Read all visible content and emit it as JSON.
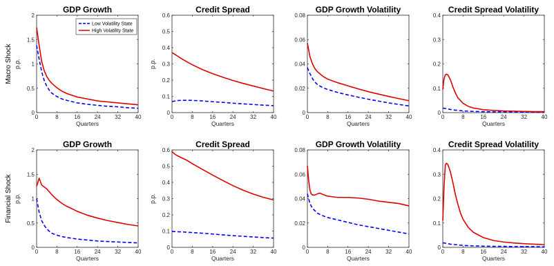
{
  "row_labels": [
    "Macro Shock",
    "Financial Shock"
  ],
  "legend": {
    "entries": [
      "Low Volatility State",
      "High Volatility State"
    ],
    "placement": "top-right of first panel"
  },
  "colors": {
    "low": "#0000ff",
    "high": "#dd0000"
  },
  "chart_data": [
    {
      "type": "line",
      "title": "GDP Growth",
      "xlabel": "Quarters",
      "ylabel": "p.p.",
      "xlim": [
        0,
        40
      ],
      "ylim": [
        0,
        2
      ],
      "xticks": [
        "0",
        "8",
        "16",
        "24",
        "32",
        "40"
      ],
      "yticks": [
        "0",
        "0.5",
        "1",
        "1.5",
        "2"
      ],
      "x": [
        0,
        1,
        2,
        3,
        4,
        5,
        6,
        8,
        10,
        12,
        16,
        20,
        24,
        28,
        32,
        36,
        40
      ],
      "series": [
        {
          "name": "Low Volatility State",
          "style": "dashed",
          "values": [
            1.38,
            1.1,
            0.84,
            0.66,
            0.54,
            0.46,
            0.4,
            0.33,
            0.28,
            0.25,
            0.2,
            0.17,
            0.15,
            0.13,
            0.12,
            0.1,
            0.09
          ]
        },
        {
          "name": "High Volatility State",
          "style": "solid",
          "values": [
            1.75,
            1.38,
            1.05,
            0.86,
            0.74,
            0.66,
            0.6,
            0.51,
            0.44,
            0.39,
            0.32,
            0.28,
            0.24,
            0.22,
            0.2,
            0.18,
            0.16
          ]
        }
      ]
    },
    {
      "type": "line",
      "title": "Credit Spread",
      "xlabel": "Quarters",
      "ylabel": "p.p.",
      "xlim": [
        0,
        40
      ],
      "ylim": [
        0,
        0.6
      ],
      "xticks": [
        "0",
        "8",
        "16",
        "24",
        "32",
        "40"
      ],
      "yticks": [
        "0",
        "0.1",
        "0.2",
        "0.3",
        "0.4",
        "0.5",
        "0.6"
      ],
      "x": [
        0,
        2,
        4,
        6,
        8,
        12,
        16,
        20,
        24,
        28,
        32,
        36,
        40
      ],
      "series": [
        {
          "name": "Low Volatility State",
          "style": "dashed",
          "values": [
            0.068,
            0.074,
            0.076,
            0.076,
            0.075,
            0.072,
            0.067,
            0.063,
            0.058,
            0.054,
            0.05,
            0.046,
            0.043
          ]
        },
        {
          "name": "High Volatility State",
          "style": "solid",
          "values": [
            0.37,
            0.35,
            0.33,
            0.312,
            0.295,
            0.265,
            0.24,
            0.218,
            0.198,
            0.18,
            0.164,
            0.148,
            0.133
          ]
        }
      ]
    },
    {
      "type": "line",
      "title": "GDP Growth Volatility",
      "xlabel": "Quarters",
      "ylabel": "",
      "xlim": [
        0,
        40
      ],
      "ylim": [
        0,
        0.08
      ],
      "xticks": [
        "0",
        "8",
        "16",
        "24",
        "32",
        "40"
      ],
      "yticks": [
        "0",
        "0.02",
        "0.04",
        "0.06",
        "0.08"
      ],
      "x": [
        0,
        1,
        2,
        3,
        4,
        6,
        8,
        12,
        16,
        20,
        24,
        28,
        32,
        36,
        40
      ],
      "series": [
        {
          "name": "Low Volatility State",
          "style": "dashed",
          "values": [
            0.037,
            0.032,
            0.028,
            0.025,
            0.023,
            0.0205,
            0.019,
            0.0165,
            0.0145,
            0.0127,
            0.011,
            0.0095,
            0.008,
            0.0067,
            0.0055
          ]
        },
        {
          "name": "High Volatility State",
          "style": "solid",
          "values": [
            0.057,
            0.046,
            0.04,
            0.036,
            0.0335,
            0.03,
            0.0275,
            0.0245,
            0.022,
            0.0195,
            0.0172,
            0.0152,
            0.0133,
            0.0115,
            0.0098
          ]
        }
      ]
    },
    {
      "type": "line",
      "title": "Credit Spread Volatility",
      "xlabel": "Quarters",
      "ylabel": "",
      "xlim": [
        0,
        40
      ],
      "ylim": [
        0,
        0.4
      ],
      "xticks": [
        "0",
        "8",
        "16",
        "24",
        "32",
        "40"
      ],
      "yticks": [
        "0",
        "0.1",
        "0.2",
        "0.3",
        "0.4"
      ],
      "x": [
        0,
        0.5,
        1,
        1.5,
        2,
        3,
        4,
        5,
        6,
        8,
        10,
        12,
        16,
        20,
        24,
        28,
        32,
        36,
        40
      ],
      "series": [
        {
          "name": "Low Volatility State",
          "style": "dashed",
          "values": [
            0.018,
            0.018,
            0.017,
            0.016,
            0.015,
            0.013,
            0.011,
            0.01,
            0.009,
            0.007,
            0.006,
            0.005,
            0.004,
            0.003,
            0.003,
            0.002,
            0.002,
            0.002,
            0.002
          ]
        },
        {
          "name": "High Volatility State",
          "style": "solid",
          "values": [
            0.095,
            0.14,
            0.155,
            0.158,
            0.155,
            0.135,
            0.105,
            0.08,
            0.06,
            0.038,
            0.026,
            0.019,
            0.012,
            0.009,
            0.007,
            0.006,
            0.005,
            0.004,
            0.004
          ]
        }
      ]
    },
    {
      "type": "line",
      "title": "GDP Growth",
      "xlabel": "Quarters",
      "ylabel": "p.p.",
      "xlim": [
        0,
        40
      ],
      "ylim": [
        0,
        2
      ],
      "xticks": [
        "0",
        "8",
        "16",
        "24",
        "32",
        "40"
      ],
      "yticks": [
        "0",
        "0.5",
        "1",
        "1.5",
        "2"
      ],
      "x": [
        0,
        1,
        2,
        3,
        4,
        5,
        6,
        8,
        10,
        12,
        16,
        20,
        24,
        28,
        32,
        36,
        40
      ],
      "series": [
        {
          "name": "Low Volatility State",
          "style": "dashed",
          "values": [
            1.0,
            0.72,
            0.55,
            0.45,
            0.38,
            0.33,
            0.29,
            0.25,
            0.22,
            0.2,
            0.17,
            0.15,
            0.13,
            0.12,
            0.11,
            0.1,
            0.09
          ]
        },
        {
          "name": "High Volatility State",
          "style": "solid",
          "values": [
            1.25,
            1.42,
            1.28,
            1.24,
            1.2,
            1.14,
            1.08,
            0.98,
            0.9,
            0.84,
            0.74,
            0.66,
            0.6,
            0.55,
            0.51,
            0.47,
            0.44
          ]
        }
      ]
    },
    {
      "type": "line",
      "title": "Credit Spread",
      "xlabel": "Quarters",
      "ylabel": "p.p.",
      "xlim": [
        0,
        40
      ],
      "ylim": [
        0,
        0.6
      ],
      "xticks": [
        "0",
        "8",
        "16",
        "24",
        "32",
        "40"
      ],
      "yticks": [
        "0",
        "0.1",
        "0.2",
        "0.3",
        "0.4",
        "0.5",
        "0.6"
      ],
      "x": [
        0,
        1,
        2,
        4,
        6,
        8,
        12,
        16,
        20,
        24,
        28,
        32,
        36,
        40
      ],
      "series": [
        {
          "name": "Low Volatility State",
          "style": "dashed",
          "values": [
            0.098,
            0.097,
            0.096,
            0.095,
            0.093,
            0.091,
            0.087,
            0.082,
            0.077,
            0.072,
            0.068,
            0.064,
            0.06,
            0.057
          ]
        },
        {
          "name": "High Volatility State",
          "style": "solid",
          "values": [
            0.59,
            0.575,
            0.565,
            0.55,
            0.535,
            0.515,
            0.48,
            0.445,
            0.412,
            0.38,
            0.352,
            0.328,
            0.308,
            0.292
          ]
        }
      ]
    },
    {
      "type": "line",
      "title": "GDP Growth Volatility",
      "xlabel": "Quarters",
      "ylabel": "",
      "xlim": [
        0,
        40
      ],
      "ylim": [
        0,
        0.08
      ],
      "xticks": [
        "0",
        "8",
        "16",
        "24",
        "32",
        "40"
      ],
      "yticks": [
        "0",
        "0.02",
        "0.04",
        "0.06",
        "0.08"
      ],
      "x": [
        0,
        0.5,
        1,
        1.5,
        2,
        3,
        4,
        5,
        6,
        8,
        10,
        12,
        16,
        20,
        24,
        28,
        32,
        36,
        40
      ],
      "series": [
        {
          "name": "Low Volatility State",
          "style": "dashed",
          "values": [
            0.044,
            0.04,
            0.036,
            0.034,
            0.032,
            0.03,
            0.028,
            0.027,
            0.026,
            0.0245,
            0.0235,
            0.0225,
            0.0205,
            0.0185,
            0.017,
            0.0155,
            0.014,
            0.0125,
            0.011
          ]
        },
        {
          "name": "High Volatility State",
          "style": "solid",
          "values": [
            0.067,
            0.055,
            0.047,
            0.044,
            0.043,
            0.043,
            0.044,
            0.0445,
            0.0435,
            0.042,
            0.0415,
            0.041,
            0.041,
            0.0405,
            0.0395,
            0.038,
            0.037,
            0.036,
            0.034
          ]
        }
      ]
    },
    {
      "type": "line",
      "title": "Credit Spread Volatility",
      "xlabel": "Quarters",
      "ylabel": "",
      "xlim": [
        0,
        40
      ],
      "ylim": [
        0,
        0.4
      ],
      "xticks": [
        "0",
        "8",
        "16",
        "24",
        "32",
        "40"
      ],
      "yticks": [
        "0",
        "0.1",
        "0.2",
        "0.3",
        "0.4"
      ],
      "x": [
        0,
        0.5,
        1,
        1.5,
        2,
        3,
        4,
        5,
        6,
        7,
        8,
        10,
        12,
        16,
        20,
        24,
        28,
        32,
        36,
        40
      ],
      "series": [
        {
          "name": "Low Volatility State",
          "style": "dashed",
          "values": [
            0.018,
            0.018,
            0.017,
            0.016,
            0.015,
            0.013,
            0.012,
            0.011,
            0.01,
            0.009,
            0.008,
            0.007,
            0.006,
            0.005,
            0.004,
            0.004,
            0.003,
            0.003,
            0.003,
            0.002
          ]
        },
        {
          "name": "High Volatility State",
          "style": "solid",
          "values": [
            0.11,
            0.25,
            0.34,
            0.345,
            0.34,
            0.31,
            0.265,
            0.215,
            0.175,
            0.14,
            0.115,
            0.082,
            0.062,
            0.04,
            0.028,
            0.022,
            0.018,
            0.015,
            0.013,
            0.011
          ]
        }
      ]
    }
  ]
}
